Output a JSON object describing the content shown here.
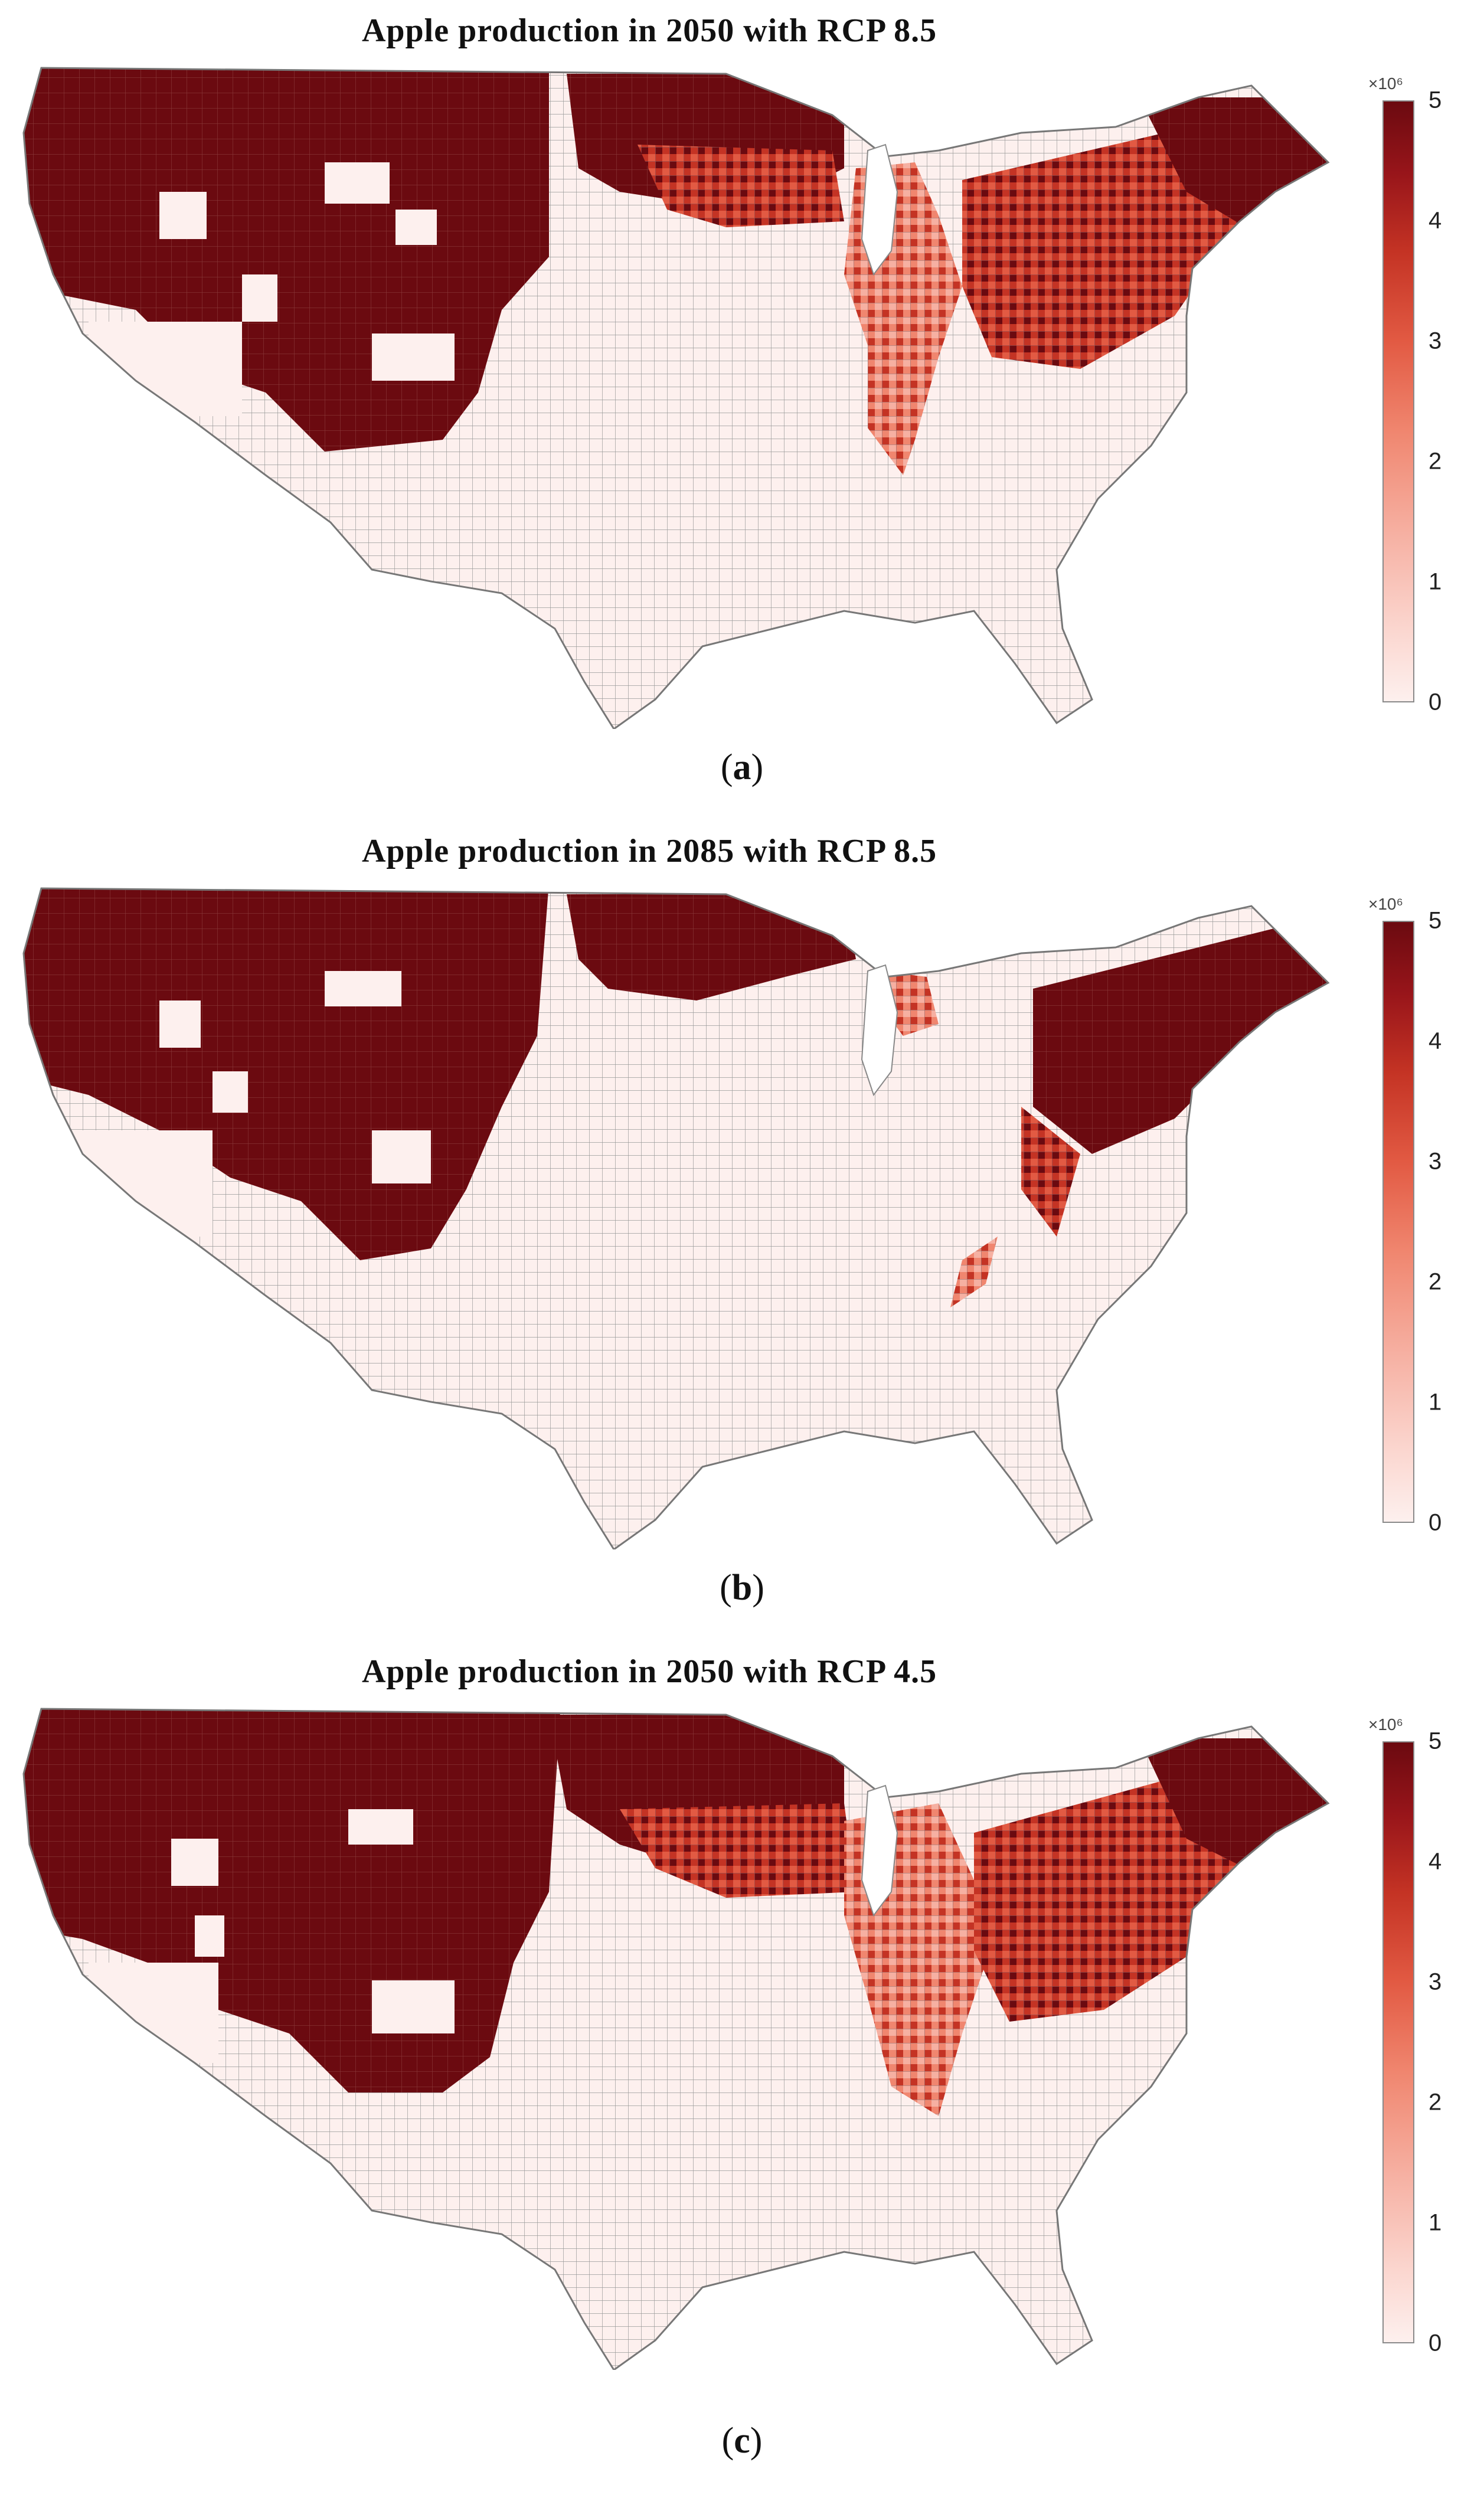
{
  "panels": [
    {
      "title": "Apple production in 2050 with RCP 8.5",
      "caption_letter": "a",
      "multiplier_label": "×10⁶",
      "colorbar_ticks": [
        "0",
        "1",
        "2",
        "3",
        "4",
        "5"
      ]
    },
    {
      "title": "Apple production in 2085 with RCP 8.5",
      "caption_letter": "b",
      "multiplier_label": "×10⁶",
      "colorbar_ticks": [
        "0",
        "1",
        "2",
        "3",
        "4",
        "5"
      ]
    },
    {
      "title": "Apple production in 2050 with RCP 4.5",
      "caption_letter": "c",
      "multiplier_label": "×10⁶",
      "colorbar_ticks": [
        "0",
        "1",
        "2",
        "3",
        "4",
        "5"
      ]
    }
  ],
  "colors": {
    "high": "#6b0a10",
    "mid": "#e25a43",
    "low": "#f6b0a2",
    "zero": "#fdf0ee",
    "border": "#8a8a8a"
  },
  "colorbar_range": [
    0,
    5
  ]
}
